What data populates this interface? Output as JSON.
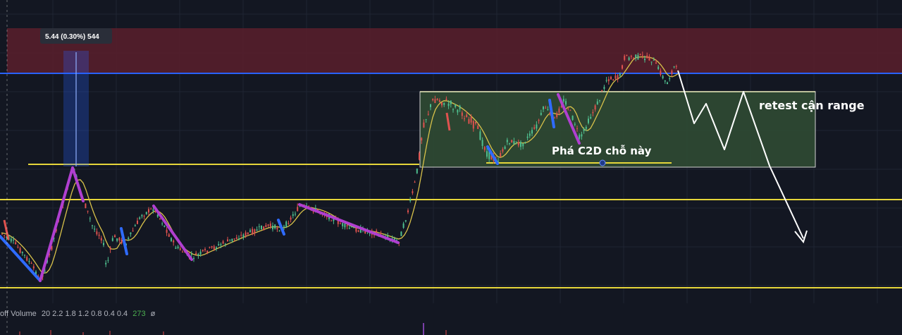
{
  "chart_data": {
    "type": "candlestick",
    "annotations": {
      "measure_label": "5.44 (0.30%) 544",
      "break_note": "Phá C2D chỗ này",
      "retest_note": "retest cận range"
    },
    "volume_legend": {
      "name": "off Volume",
      "values": "20 2.2 1.8 1.2 0.8 0.4 0.4",
      "count": "273",
      "symbol": "ø"
    },
    "colors": {
      "background": "#131722",
      "supply_zone": "#5b1f2b",
      "range_box": "#2f4a33",
      "yellow_line": "#e6d63a",
      "blue_line": "#2962ff",
      "purple_leg": "#b03fd0",
      "blue_leg": "#2f6bff",
      "bull": "#4fbf8f",
      "bear": "#e0524f",
      "ma": "#d8c24a",
      "measure": "#2962ff",
      "projection": "#ffffff"
    },
    "grid": true
  }
}
